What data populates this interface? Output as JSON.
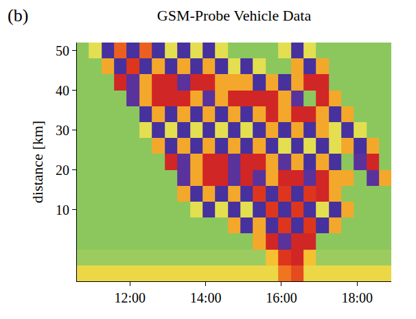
{
  "chart_data": {
    "type": "heatmap",
    "title": "GSM-Probe Vehicle Data",
    "annotations": [
      "(b)"
    ],
    "y_label": "distance [km]",
    "x": [
      10.75,
      11.08,
      11.42,
      11.75,
      12.08,
      12.42,
      12.75,
      13.08,
      13.42,
      13.75,
      14.08,
      14.42,
      14.75,
      15.08,
      15.42,
      15.75,
      16.08,
      16.42,
      16.75,
      17.08,
      17.42,
      17.75,
      18.08,
      18.42,
      18.75
    ],
    "y": [
      -6,
      -2,
      2,
      6,
      10,
      14,
      18,
      22,
      26,
      30,
      34,
      38,
      42,
      46,
      50
    ],
    "z": [
      [
        80,
        80,
        80,
        80,
        80,
        80,
        80,
        80,
        80,
        80,
        80,
        80,
        80,
        80,
        80,
        80,
        55,
        45,
        80,
        80,
        80,
        80,
        80,
        80,
        80
      ],
      [
        100,
        100,
        100,
        100,
        100,
        100,
        100,
        100,
        100,
        100,
        100,
        100,
        100,
        100,
        100,
        70,
        40,
        35,
        70,
        100,
        100,
        100,
        100,
        100,
        100
      ],
      [
        105,
        105,
        105,
        105,
        105,
        105,
        105,
        105,
        105,
        105,
        105,
        105,
        105,
        105,
        65,
        35,
        20,
        35,
        35,
        105,
        105,
        105,
        105,
        105,
        105
      ],
      [
        105,
        105,
        105,
        105,
        105,
        105,
        105,
        105,
        105,
        105,
        105,
        105,
        65,
        15,
        65,
        15,
        40,
        15,
        40,
        15,
        65,
        105,
        105,
        105,
        105
      ],
      [
        105,
        105,
        105,
        105,
        105,
        105,
        105,
        105,
        105,
        85,
        15,
        85,
        15,
        85,
        15,
        40,
        15,
        40,
        15,
        85,
        15,
        65,
        105,
        105,
        105
      ],
      [
        105,
        105,
        105,
        105,
        105,
        105,
        105,
        105,
        65,
        15,
        65,
        15,
        65,
        15,
        40,
        15,
        40,
        15,
        40,
        35,
        65,
        105,
        105,
        105,
        105
      ],
      [
        105,
        105,
        105,
        105,
        105,
        105,
        105,
        105,
        20,
        65,
        35,
        35,
        20,
        35,
        20,
        65,
        35,
        35,
        20,
        35,
        65,
        65,
        105,
        20,
        65
      ],
      [
        105,
        105,
        105,
        105,
        105,
        105,
        105,
        35,
        20,
        65,
        35,
        35,
        20,
        35,
        35,
        65,
        20,
        65,
        15,
        65,
        15,
        105,
        20,
        35,
        105
      ],
      [
        105,
        105,
        105,
        105,
        105,
        105,
        65,
        15,
        65,
        15,
        65,
        15,
        65,
        15,
        65,
        15,
        85,
        15,
        85,
        15,
        85,
        65,
        15,
        65,
        105
      ],
      [
        105,
        105,
        105,
        105,
        105,
        85,
        15,
        85,
        15,
        85,
        15,
        85,
        15,
        85,
        15,
        65,
        15,
        65,
        15,
        65,
        85,
        15,
        85,
        105,
        105
      ],
      [
        105,
        105,
        105,
        105,
        105,
        15,
        65,
        15,
        65,
        15,
        65,
        15,
        65,
        15,
        65,
        35,
        65,
        35,
        35,
        65,
        15,
        65,
        105,
        105,
        105
      ],
      [
        105,
        105,
        105,
        105,
        20,
        65,
        35,
        35,
        35,
        65,
        20,
        65,
        35,
        35,
        35,
        35,
        65,
        20,
        105,
        35,
        65,
        105,
        105,
        105,
        105
      ],
      [
        105,
        105,
        105,
        35,
        20,
        65,
        35,
        35,
        20,
        35,
        35,
        65,
        65,
        65,
        15,
        65,
        15,
        65,
        35,
        35,
        105,
        105,
        105,
        105,
        105
      ],
      [
        105,
        105,
        65,
        15,
        40,
        15,
        65,
        15,
        65,
        15,
        65,
        15,
        85,
        15,
        85,
        105,
        105,
        65,
        15,
        65,
        105,
        105,
        105,
        105,
        105
      ],
      [
        105,
        85,
        15,
        50,
        15,
        50,
        15,
        85,
        15,
        85,
        15,
        85,
        105,
        105,
        105,
        105,
        85,
        15,
        85,
        105,
        105,
        105,
        105,
        105,
        105
      ]
    ],
    "zlim": [
      0,
      120
    ],
    "xlim": [
      10.6,
      18.9
    ],
    "ylim": [
      -8,
      52
    ],
    "xticks": [
      {
        "value": 12,
        "label": "12:00"
      },
      {
        "value": 14,
        "label": "14:00"
      },
      {
        "value": 16,
        "label": "16:00"
      },
      {
        "value": 18,
        "label": "18:00"
      }
    ],
    "yticks": [
      10,
      20,
      30,
      40,
      50
    ]
  }
}
